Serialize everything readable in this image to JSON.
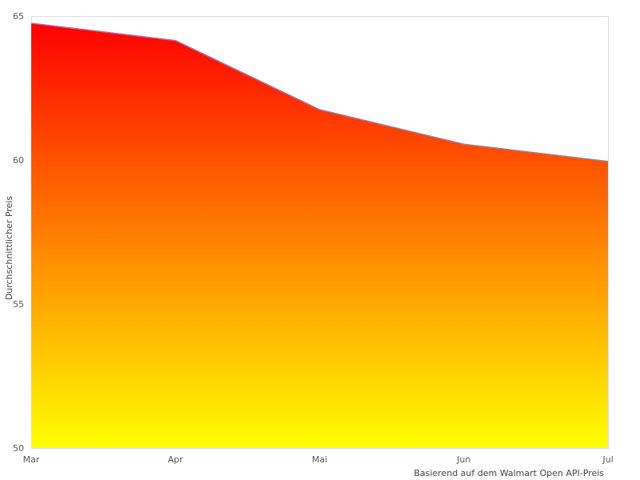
{
  "chart_data": {
    "type": "area",
    "categories": [
      "Mar",
      "Apr",
      "Mai",
      "Jun",
      "Jul"
    ],
    "series": [
      {
        "values": [
          64.75,
          64.15,
          61.75,
          60.55,
          59.95
        ]
      }
    ],
    "ylabel": "Durchschnittlicher Preis",
    "xlabel": "",
    "caption": "Basierend auf dem Walmart Open API-Preis",
    "ylim": [
      50,
      65
    ],
    "yticks": [
      50,
      55,
      60,
      65
    ],
    "grid": false,
    "legend": "none",
    "colors": {
      "fill_top": "#ff0000",
      "fill_bottom": "#ffff00",
      "line": "#6b8fc9",
      "plot_border": "#d8dce6"
    }
  }
}
